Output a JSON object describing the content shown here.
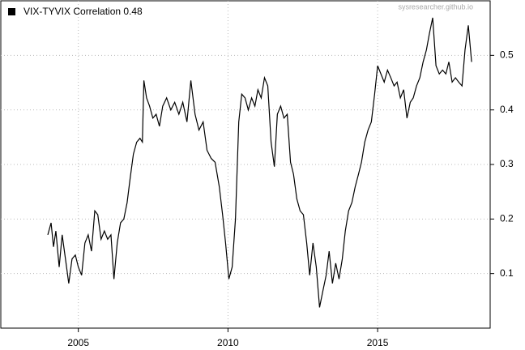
{
  "chart_data": {
    "type": "line",
    "watermark": "sysresearcher.github.io",
    "x": [
      2003.98,
      2004.09,
      2004.17,
      2004.25,
      2004.36,
      2004.46,
      2004.57,
      2004.68,
      2004.79,
      2004.9,
      2005.0,
      2005.11,
      2005.22,
      2005.33,
      2005.44,
      2005.55,
      2005.65,
      2005.76,
      2005.87,
      2005.98,
      2006.09,
      2006.19,
      2006.3,
      2006.41,
      2006.52,
      2006.63,
      2006.73,
      2006.84,
      2006.95,
      2007.06,
      2007.14,
      2007.19,
      2007.28,
      2007.38,
      2007.49,
      2007.6,
      2007.71,
      2007.82,
      2007.95,
      2008.09,
      2008.22,
      2008.36,
      2008.49,
      2008.63,
      2008.76,
      2008.9,
      2009.03,
      2009.17,
      2009.3,
      2009.44,
      2009.57,
      2009.71,
      2009.82,
      2009.92,
      2010.03,
      2010.14,
      2010.25,
      2010.36,
      2010.46,
      2010.57,
      2010.68,
      2010.79,
      2010.9,
      2011.0,
      2011.11,
      2011.22,
      2011.33,
      2011.44,
      2011.55,
      2011.65,
      2011.76,
      2011.87,
      2011.98,
      2012.09,
      2012.19,
      2012.3,
      2012.41,
      2012.52,
      2012.63,
      2012.73,
      2012.84,
      2012.95,
      2013.06,
      2013.17,
      2013.28,
      2013.38,
      2013.49,
      2013.6,
      2013.71,
      2013.82,
      2013.92,
      2014.03,
      2014.14,
      2014.25,
      2014.36,
      2014.46,
      2014.57,
      2014.68,
      2014.79,
      2014.9,
      2015.0,
      2015.11,
      2015.22,
      2015.33,
      2015.44,
      2015.55,
      2015.65,
      2015.76,
      2015.87,
      2015.98,
      2016.09,
      2016.19,
      2016.3,
      2016.41,
      2016.52,
      2016.63,
      2016.73,
      2016.84,
      2016.95,
      2017.06,
      2017.17,
      2017.28,
      2017.38,
      2017.49,
      2017.6,
      2017.71,
      2017.82,
      2017.92,
      2018.03,
      2018.14
    ],
    "series": [
      {
        "name": "VIX-TYVIX Correlation 0.48",
        "color": "#000000",
        "values": [
          0.171,
          0.193,
          0.149,
          0.178,
          0.112,
          0.171,
          0.127,
          0.082,
          0.127,
          0.134,
          0.112,
          0.097,
          0.156,
          0.171,
          0.141,
          0.215,
          0.208,
          0.163,
          0.178,
          0.163,
          0.171,
          0.09,
          0.156,
          0.193,
          0.2,
          0.23,
          0.274,
          0.319,
          0.341,
          0.348,
          0.341,
          0.454,
          0.422,
          0.407,
          0.385,
          0.392,
          0.37,
          0.407,
          0.422,
          0.4,
          0.414,
          0.392,
          0.414,
          0.378,
          0.454,
          0.392,
          0.363,
          0.378,
          0.326,
          0.311,
          0.304,
          0.259,
          0.208,
          0.156,
          0.09,
          0.112,
          0.2,
          0.378,
          0.429,
          0.422,
          0.4,
          0.422,
          0.407,
          0.437,
          0.422,
          0.459,
          0.444,
          0.341,
          0.296,
          0.392,
          0.407,
          0.385,
          0.392,
          0.304,
          0.282,
          0.237,
          0.215,
          0.208,
          0.156,
          0.097,
          0.156,
          0.112,
          0.038,
          0.068,
          0.097,
          0.141,
          0.082,
          0.119,
          0.09,
          0.127,
          0.178,
          0.215,
          0.23,
          0.259,
          0.282,
          0.304,
          0.341,
          0.363,
          0.378,
          0.429,
          0.481,
          0.466,
          0.451,
          0.473,
          0.459,
          0.444,
          0.451,
          0.422,
          0.437,
          0.385,
          0.414,
          0.422,
          0.444,
          0.459,
          0.488,
          0.51,
          0.54,
          0.569,
          0.481,
          0.466,
          0.473,
          0.466,
          0.488,
          0.451,
          0.459,
          0.451,
          0.444,
          0.51,
          0.555,
          0.488
        ]
      }
    ],
    "xlim": [
      2002.41,
      2018.76
    ],
    "xticks": [
      2005,
      2010,
      2015
    ],
    "ylim": [
      0,
      0.6
    ],
    "yticks": [
      0.1,
      0.2,
      0.3,
      0.4,
      0.5
    ],
    "grid": true,
    "legend": "top-left"
  }
}
